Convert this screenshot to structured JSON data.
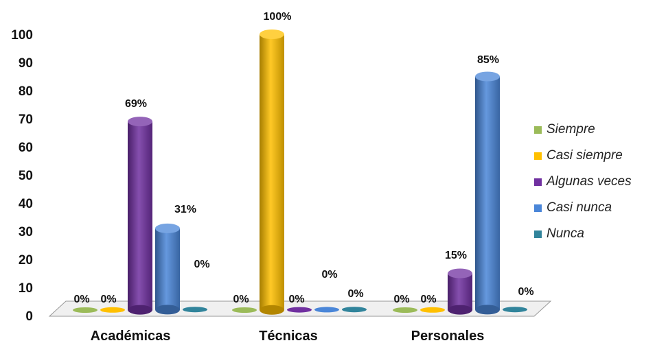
{
  "chart_data": {
    "type": "bar",
    "title": "",
    "xlabel": "",
    "ylabel": "",
    "ylim": [
      0,
      100
    ],
    "yticks": [
      0,
      10,
      20,
      30,
      40,
      50,
      60,
      70,
      80,
      90,
      100
    ],
    "grid": false,
    "legend_position": "right",
    "categories": [
      "Académicas",
      "Técnicas",
      "Personales"
    ],
    "series": [
      {
        "name": "Siempre",
        "color": "#9bbb59",
        "values": [
          0,
          0,
          0
        ],
        "labels": [
          "0%",
          "0%",
          "0%"
        ]
      },
      {
        "name": "Casi siempre",
        "color": "#ffc000",
        "values": [
          0,
          100,
          0
        ],
        "labels": [
          "0%",
          "100%",
          "0%"
        ]
      },
      {
        "name": "Algunas veces",
        "color": "#7030a0",
        "values": [
          69,
          0,
          15
        ],
        "labels": [
          "69%",
          "0%",
          "15%"
        ]
      },
      {
        "name": "Casi nunca",
        "color": "#4a86d8",
        "values": [
          31,
          0,
          85
        ],
        "labels": [
          "31%",
          "0%",
          "85%"
        ]
      },
      {
        "name": "Nunca",
        "color": "#31849b",
        "values": [
          0,
          0,
          0
        ],
        "labels": [
          "0%",
          "0%",
          "0%"
        ]
      }
    ]
  }
}
